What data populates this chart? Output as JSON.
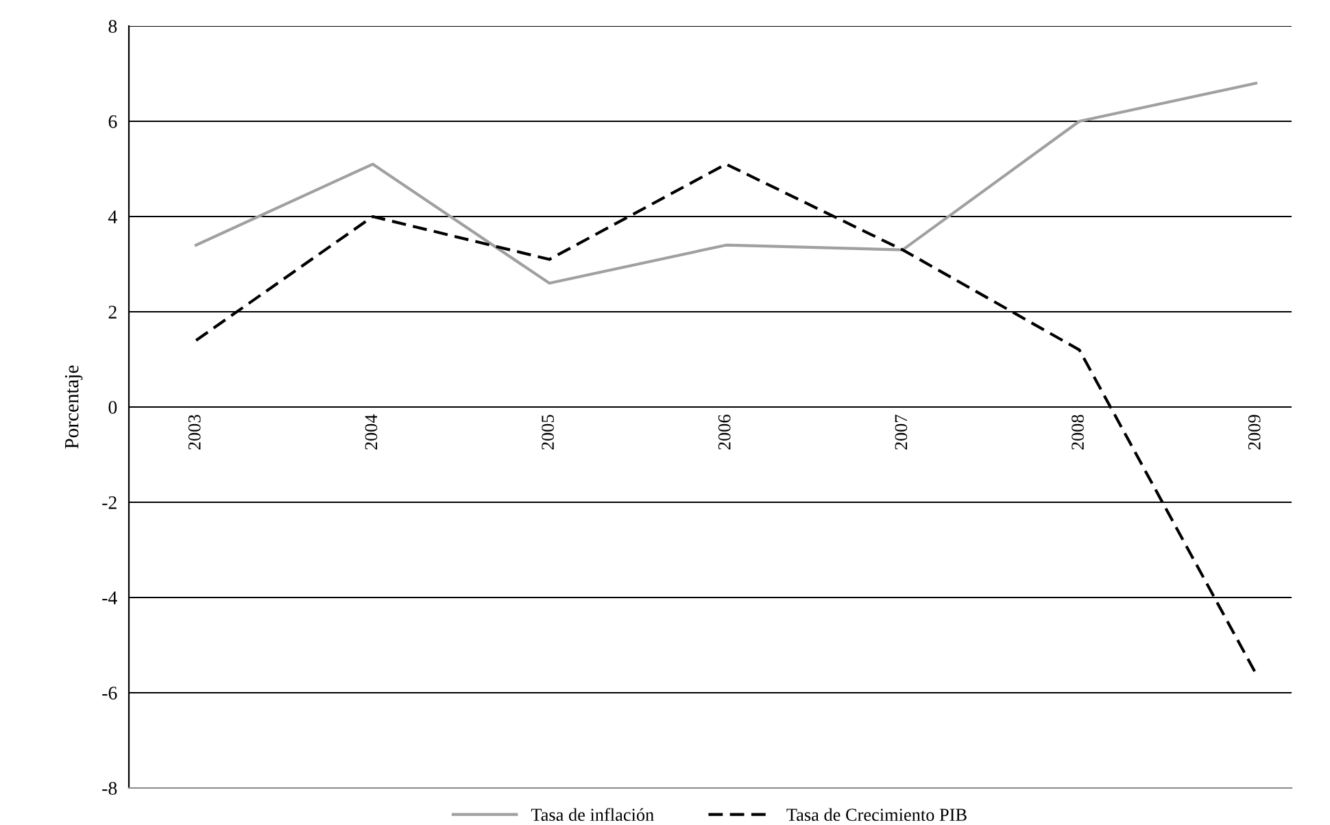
{
  "chart_data": {
    "type": "line",
    "ylabel": "Porcentaje",
    "categories": [
      "2003",
      "2004",
      "2005",
      "2006",
      "2007",
      "2008",
      "2009"
    ],
    "series": [
      {
        "name": "Tasa de inflación",
        "color": "#a0a0a0",
        "line_style": "solid",
        "values": [
          3.4,
          5.1,
          2.6,
          3.4,
          3.3,
          6.0,
          6.8
        ]
      },
      {
        "name": "Tasa de Crecimiento PIB",
        "color": "#000000",
        "line_style": "dashed",
        "values": [
          1.4,
          4.0,
          3.1,
          5.1,
          3.3,
          1.2,
          -5.6
        ]
      }
    ],
    "ylim": [
      -8,
      8
    ],
    "yticks": [
      -8,
      -6,
      -4,
      -2,
      0,
      2,
      4,
      6,
      8
    ],
    "grid": "y",
    "legend": "bottom",
    "marker": "none"
  }
}
